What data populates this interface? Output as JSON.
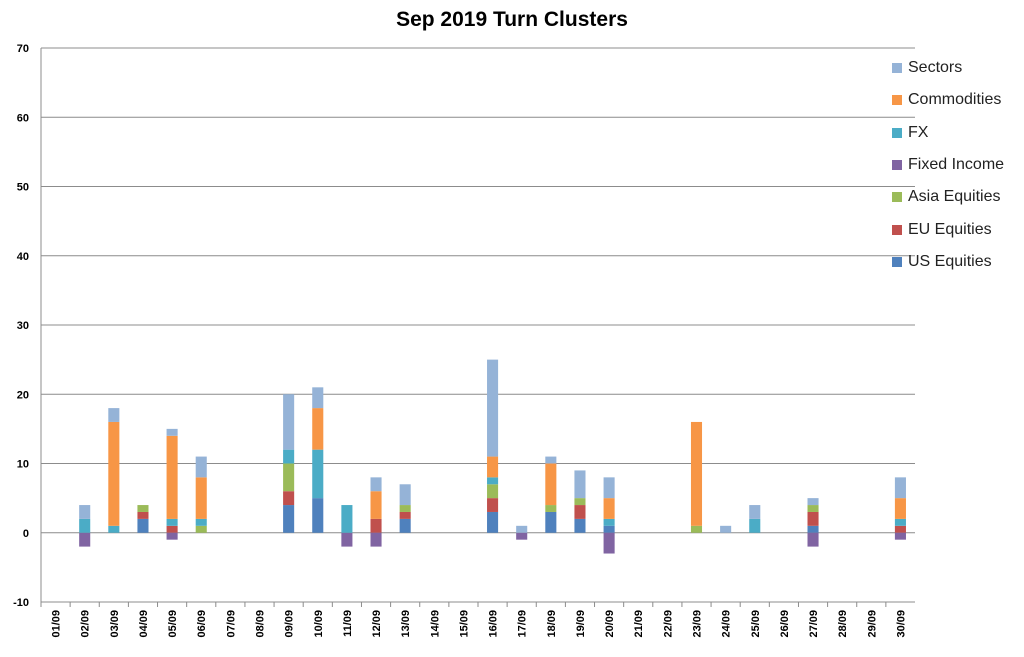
{
  "chart_data": {
    "type": "bar",
    "stacked": true,
    "title": "Sep 2019 Turn Clusters",
    "xlabel": "",
    "ylabel": "",
    "ylim": [
      -10,
      70
    ],
    "yticks": [
      "-10",
      "0",
      "10",
      "20",
      "30",
      "40",
      "50",
      "60",
      "70"
    ],
    "grid": true,
    "legend_position": "right",
    "categories": [
      "01/09",
      "02/09",
      "03/09",
      "04/09",
      "05/09",
      "06/09",
      "07/09",
      "08/09",
      "09/09",
      "10/09",
      "11/09",
      "12/09",
      "13/09",
      "14/09",
      "15/09",
      "16/09",
      "17/09",
      "18/09",
      "19/09",
      "20/09",
      "21/09",
      "22/09",
      "23/09",
      "24/09",
      "25/09",
      "26/09",
      "27/09",
      "28/09",
      "29/09",
      "30/09"
    ],
    "series": [
      {
        "name": "US Equities",
        "color": "#4F81BD",
        "values": [
          0,
          0,
          0,
          2,
          0,
          0,
          0,
          0,
          4,
          5,
          0,
          0,
          2,
          0,
          0,
          3,
          0,
          3,
          2,
          1,
          0,
          0,
          0,
          0,
          0,
          0,
          1,
          0,
          0,
          0
        ]
      },
      {
        "name": "EU Equities",
        "color": "#C0504D",
        "values": [
          0,
          0,
          0,
          1,
          1,
          0,
          0,
          0,
          2,
          0,
          0,
          2,
          1,
          0,
          0,
          2,
          0,
          0,
          2,
          0,
          0,
          0,
          0,
          0,
          0,
          0,
          2,
          0,
          0,
          1
        ]
      },
      {
        "name": "Asia Equities",
        "color": "#9BBB59",
        "values": [
          0,
          0,
          0,
          1,
          0,
          1,
          0,
          0,
          4,
          0,
          0,
          0,
          1,
          0,
          0,
          2,
          0,
          1,
          1,
          0,
          0,
          0,
          1,
          0,
          0,
          0,
          1,
          0,
          0,
          0
        ]
      },
      {
        "name": "Fixed Income",
        "color": "#8064A2",
        "values": [
          0,
          -2,
          0,
          0,
          -1,
          0,
          0,
          0,
          0,
          0,
          -2,
          -2,
          0,
          0,
          0,
          0,
          -1,
          0,
          0,
          -3,
          0,
          0,
          0,
          0,
          0,
          0,
          -2,
          0,
          0,
          -1
        ]
      },
      {
        "name": "FX",
        "color": "#4BACC6",
        "values": [
          0,
          2,
          1,
          0,
          1,
          1,
          0,
          0,
          2,
          7,
          4,
          0,
          0,
          0,
          0,
          1,
          0,
          0,
          0,
          1,
          0,
          0,
          0,
          0,
          2,
          0,
          0,
          0,
          0,
          1
        ]
      },
      {
        "name": "Commodities",
        "color": "#F79646",
        "values": [
          0,
          0,
          15,
          0,
          12,
          6,
          0,
          0,
          0,
          6,
          0,
          4,
          0,
          0,
          0,
          3,
          0,
          6,
          0,
          3,
          0,
          0,
          15,
          0,
          0,
          0,
          0,
          0,
          0,
          3
        ]
      },
      {
        "name": "Sectors",
        "color": "#95B3D7",
        "values": [
          0,
          2,
          2,
          0,
          1,
          3,
          0,
          0,
          8,
          3,
          0,
          2,
          3,
          0,
          0,
          14,
          1,
          1,
          4,
          3,
          0,
          0,
          0,
          1,
          2,
          0,
          1,
          0,
          0,
          3
        ]
      }
    ]
  }
}
